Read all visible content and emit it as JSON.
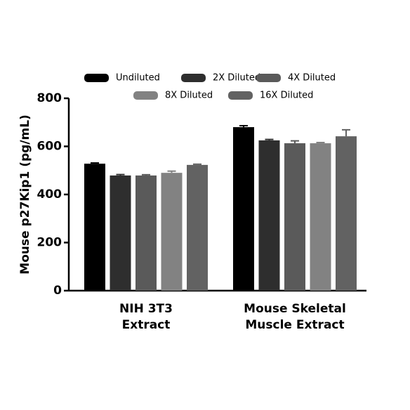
{
  "chart_data": {
    "type": "bar",
    "y_label": "Mouse p27Kip1 (pg/mL)",
    "categories": [
      [
        "NIH 3T3",
        "Extract"
      ],
      [
        "Mouse Skeletal",
        "Muscle Extract"
      ]
    ],
    "series": [
      {
        "name": "Undiluted",
        "color": "#000000",
        "values": [
          528,
          680
        ],
        "errors": [
          3,
          6
        ]
      },
      {
        "name": "2X Diluted",
        "color": "#2e2e2e",
        "values": [
          479,
          625
        ],
        "errors": [
          4,
          4
        ]
      },
      {
        "name": "4X Diluted",
        "color": "#5a5a5a",
        "values": [
          479,
          613
        ],
        "errors": [
          3,
          10
        ]
      },
      {
        "name": "8X Diluted",
        "color": "#828282",
        "values": [
          490,
          613
        ],
        "errors": [
          7,
          3
        ]
      },
      {
        "name": "16X Diluted",
        "color": "#626262",
        "values": [
          523,
          642
        ],
        "errors": [
          3,
          27
        ]
      }
    ],
    "ylim": [
      0,
      800
    ],
    "yticks": [
      0,
      200,
      400,
      600,
      800
    ]
  }
}
